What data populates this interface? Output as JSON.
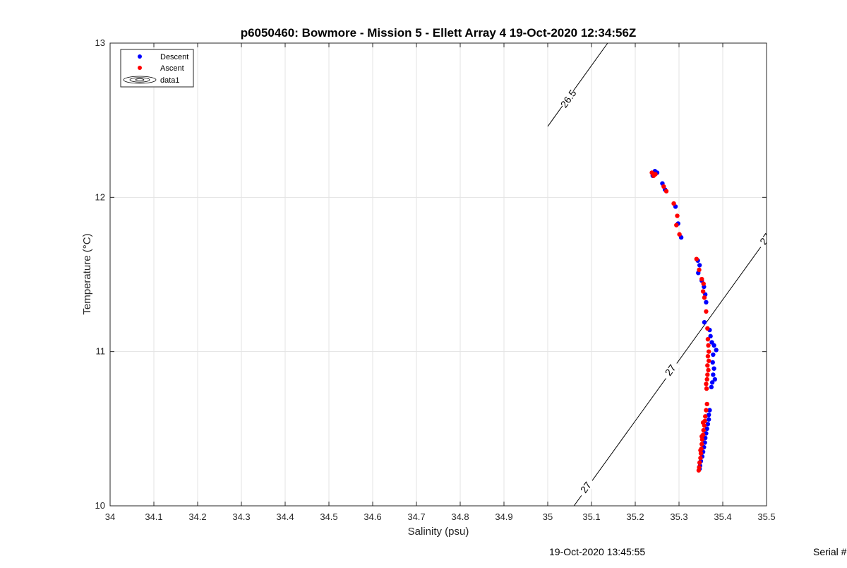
{
  "chart_data": {
    "type": "scatter",
    "title": "p6050460: Bowmore - Mission 5 - Ellett Array 4 19-Oct-2020 12:34:56Z",
    "xlabel": "Salinity (psu)",
    "ylabel": "Temperature (°C)",
    "xlim": [
      34,
      35.5
    ],
    "ylim": [
      10,
      13
    ],
    "xticks": [
      "34",
      "34.1",
      "34.2",
      "34.3",
      "34.4",
      "34.5",
      "34.6",
      "34.7",
      "34.8",
      "34.9",
      "35",
      "35.1",
      "35.2",
      "35.3",
      "35.4",
      "35.5"
    ],
    "yticks": [
      "10",
      "11",
      "12",
      "13"
    ],
    "grid": true,
    "legend_position": "top-left",
    "legend": [
      "Descent",
      "Ascent",
      "data1"
    ],
    "series": [
      {
        "name": "Descent",
        "color": "#0000ff",
        "points": [
          [
            35.245,
            12.17
          ],
          [
            35.25,
            12.16
          ],
          [
            35.24,
            12.14
          ],
          [
            35.262,
            12.09
          ],
          [
            35.268,
            12.05
          ],
          [
            35.292,
            11.94
          ],
          [
            35.298,
            11.83
          ],
          [
            35.305,
            11.74
          ],
          [
            35.343,
            11.59
          ],
          [
            35.347,
            11.56
          ],
          [
            35.344,
            11.51
          ],
          [
            35.352,
            11.46
          ],
          [
            35.357,
            11.42
          ],
          [
            35.36,
            11.37
          ],
          [
            35.362,
            11.32
          ],
          [
            35.358,
            11.19
          ],
          [
            35.37,
            11.14
          ],
          [
            35.372,
            11.1
          ],
          [
            35.375,
            11.06
          ],
          [
            35.38,
            11.04
          ],
          [
            35.385,
            11.01
          ],
          [
            35.378,
            10.98
          ],
          [
            35.377,
            10.93
          ],
          [
            35.38,
            10.89
          ],
          [
            35.378,
            10.85
          ],
          [
            35.382,
            10.82
          ],
          [
            35.376,
            10.8
          ],
          [
            35.374,
            10.77
          ],
          [
            35.37,
            10.62
          ],
          [
            35.368,
            10.59
          ],
          [
            35.368,
            10.56
          ],
          [
            35.366,
            10.53
          ],
          [
            35.364,
            10.5
          ],
          [
            35.362,
            10.47
          ],
          [
            35.36,
            10.44
          ],
          [
            35.359,
            10.41
          ],
          [
            35.357,
            10.38
          ],
          [
            35.355,
            10.35
          ],
          [
            35.353,
            10.32
          ],
          [
            35.35,
            10.29
          ],
          [
            35.348,
            10.26
          ],
          [
            35.347,
            10.24
          ]
        ]
      },
      {
        "name": "Ascent",
        "color": "#ff0000",
        "points": [
          [
            35.238,
            12.16
          ],
          [
            35.242,
            12.14
          ],
          [
            35.246,
            12.15
          ],
          [
            35.265,
            12.07
          ],
          [
            35.271,
            12.04
          ],
          [
            35.288,
            11.96
          ],
          [
            35.296,
            11.88
          ],
          [
            35.294,
            11.82
          ],
          [
            35.301,
            11.76
          ],
          [
            35.34,
            11.6
          ],
          [
            35.346,
            11.53
          ],
          [
            35.352,
            11.47
          ],
          [
            35.356,
            11.44
          ],
          [
            35.355,
            11.39
          ],
          [
            35.358,
            11.35
          ],
          [
            35.362,
            11.26
          ],
          [
            35.365,
            11.15
          ],
          [
            35.366,
            11.08
          ],
          [
            35.367,
            11.04
          ],
          [
            35.368,
            11.0
          ],
          [
            35.366,
            10.97
          ],
          [
            35.368,
            10.94
          ],
          [
            35.365,
            10.91
          ],
          [
            35.367,
            10.88
          ],
          [
            35.365,
            10.85
          ],
          [
            35.364,
            10.82
          ],
          [
            35.362,
            10.79
          ],
          [
            35.363,
            10.76
          ],
          [
            35.364,
            10.66
          ],
          [
            35.362,
            10.62
          ],
          [
            35.36,
            10.58
          ],
          [
            35.359,
            10.55
          ],
          [
            35.358,
            10.52
          ],
          [
            35.356,
            10.49
          ],
          [
            35.355,
            10.46
          ],
          [
            35.353,
            10.43
          ],
          [
            35.352,
            10.4
          ],
          [
            35.351,
            10.37
          ],
          [
            35.35,
            10.34
          ],
          [
            35.349,
            10.31
          ],
          [
            35.347,
            10.28
          ],
          [
            35.346,
            10.25
          ],
          [
            35.345,
            10.23
          ],
          [
            35.349,
            10.36
          ],
          [
            35.352,
            10.45
          ],
          [
            35.355,
            10.54
          ]
        ]
      }
    ],
    "contours": [
      {
        "label": "26.5",
        "points": [
          [
            35.0,
            12.46
          ],
          [
            35.137,
            13.0
          ]
        ],
        "label_at": [
          35.047,
          12.64
        ]
      },
      {
        "label": "27",
        "points": [
          [
            35.06,
            10.0
          ],
          [
            35.5,
            11.73
          ]
        ],
        "labels_at": [
          [
            35.087,
            10.12
          ],
          [
            35.28,
            10.88
          ],
          [
            35.497,
            11.73
          ]
        ]
      }
    ]
  },
  "footer": {
    "timestamp": "19-Oct-2020 13:45:55",
    "serial": "Serial #"
  }
}
